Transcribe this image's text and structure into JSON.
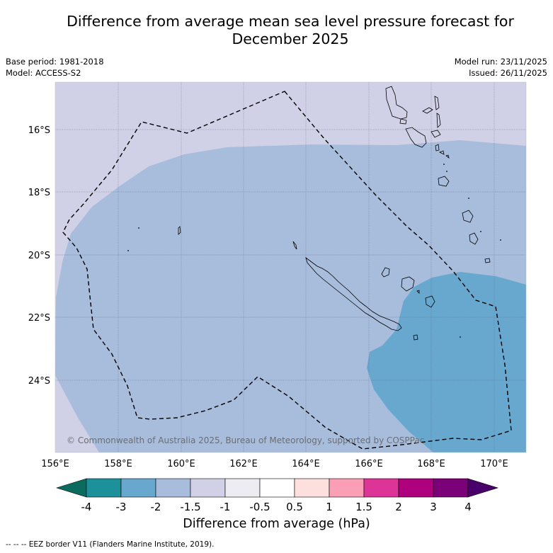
{
  "title_line1": "Difference from average mean sea level pressure forecast for",
  "title_line2": "December 2025",
  "base_period": "Base period: 1981-2018",
  "model": "Model: ACCESS-S2",
  "model_run": "Model run: 23/11/2025",
  "issued": "Issued: 26/11/2025",
  "credit": "© Commonwealth of Australia 2025, Bureau of Meteorology, supported by COSPPac",
  "lat_labels": [
    "16°S",
    "18°S",
    "20°S",
    "22°S",
    "24°S"
  ],
  "lon_labels": [
    "156°E",
    "158°E",
    "160°E",
    "162°E",
    "164°E",
    "166°E",
    "168°E",
    "170°E"
  ],
  "colorbar": {
    "ticks": [
      "-4",
      "-3",
      "-2",
      "-1.5",
      "-1",
      "-0.5",
      "0.5",
      "1",
      "1.5",
      "2",
      "3",
      "4"
    ],
    "colors": {
      "below_min": "#0b6b5f",
      "bins": [
        "#1c9199",
        "#68a8cf",
        "#a8bcdc",
        "#d0d1e6",
        "#ececf2",
        "#ffffff",
        "#fde0dd",
        "#fa9fb5",
        "#dd3497",
        "#ae017e",
        "#7a0177"
      ],
      "above_max": "#49006a"
    },
    "label": "Difference from average (hPa)"
  },
  "footer": "-- -- -- EEZ border V11 (Flanders Marine Institute, 2019)."
}
